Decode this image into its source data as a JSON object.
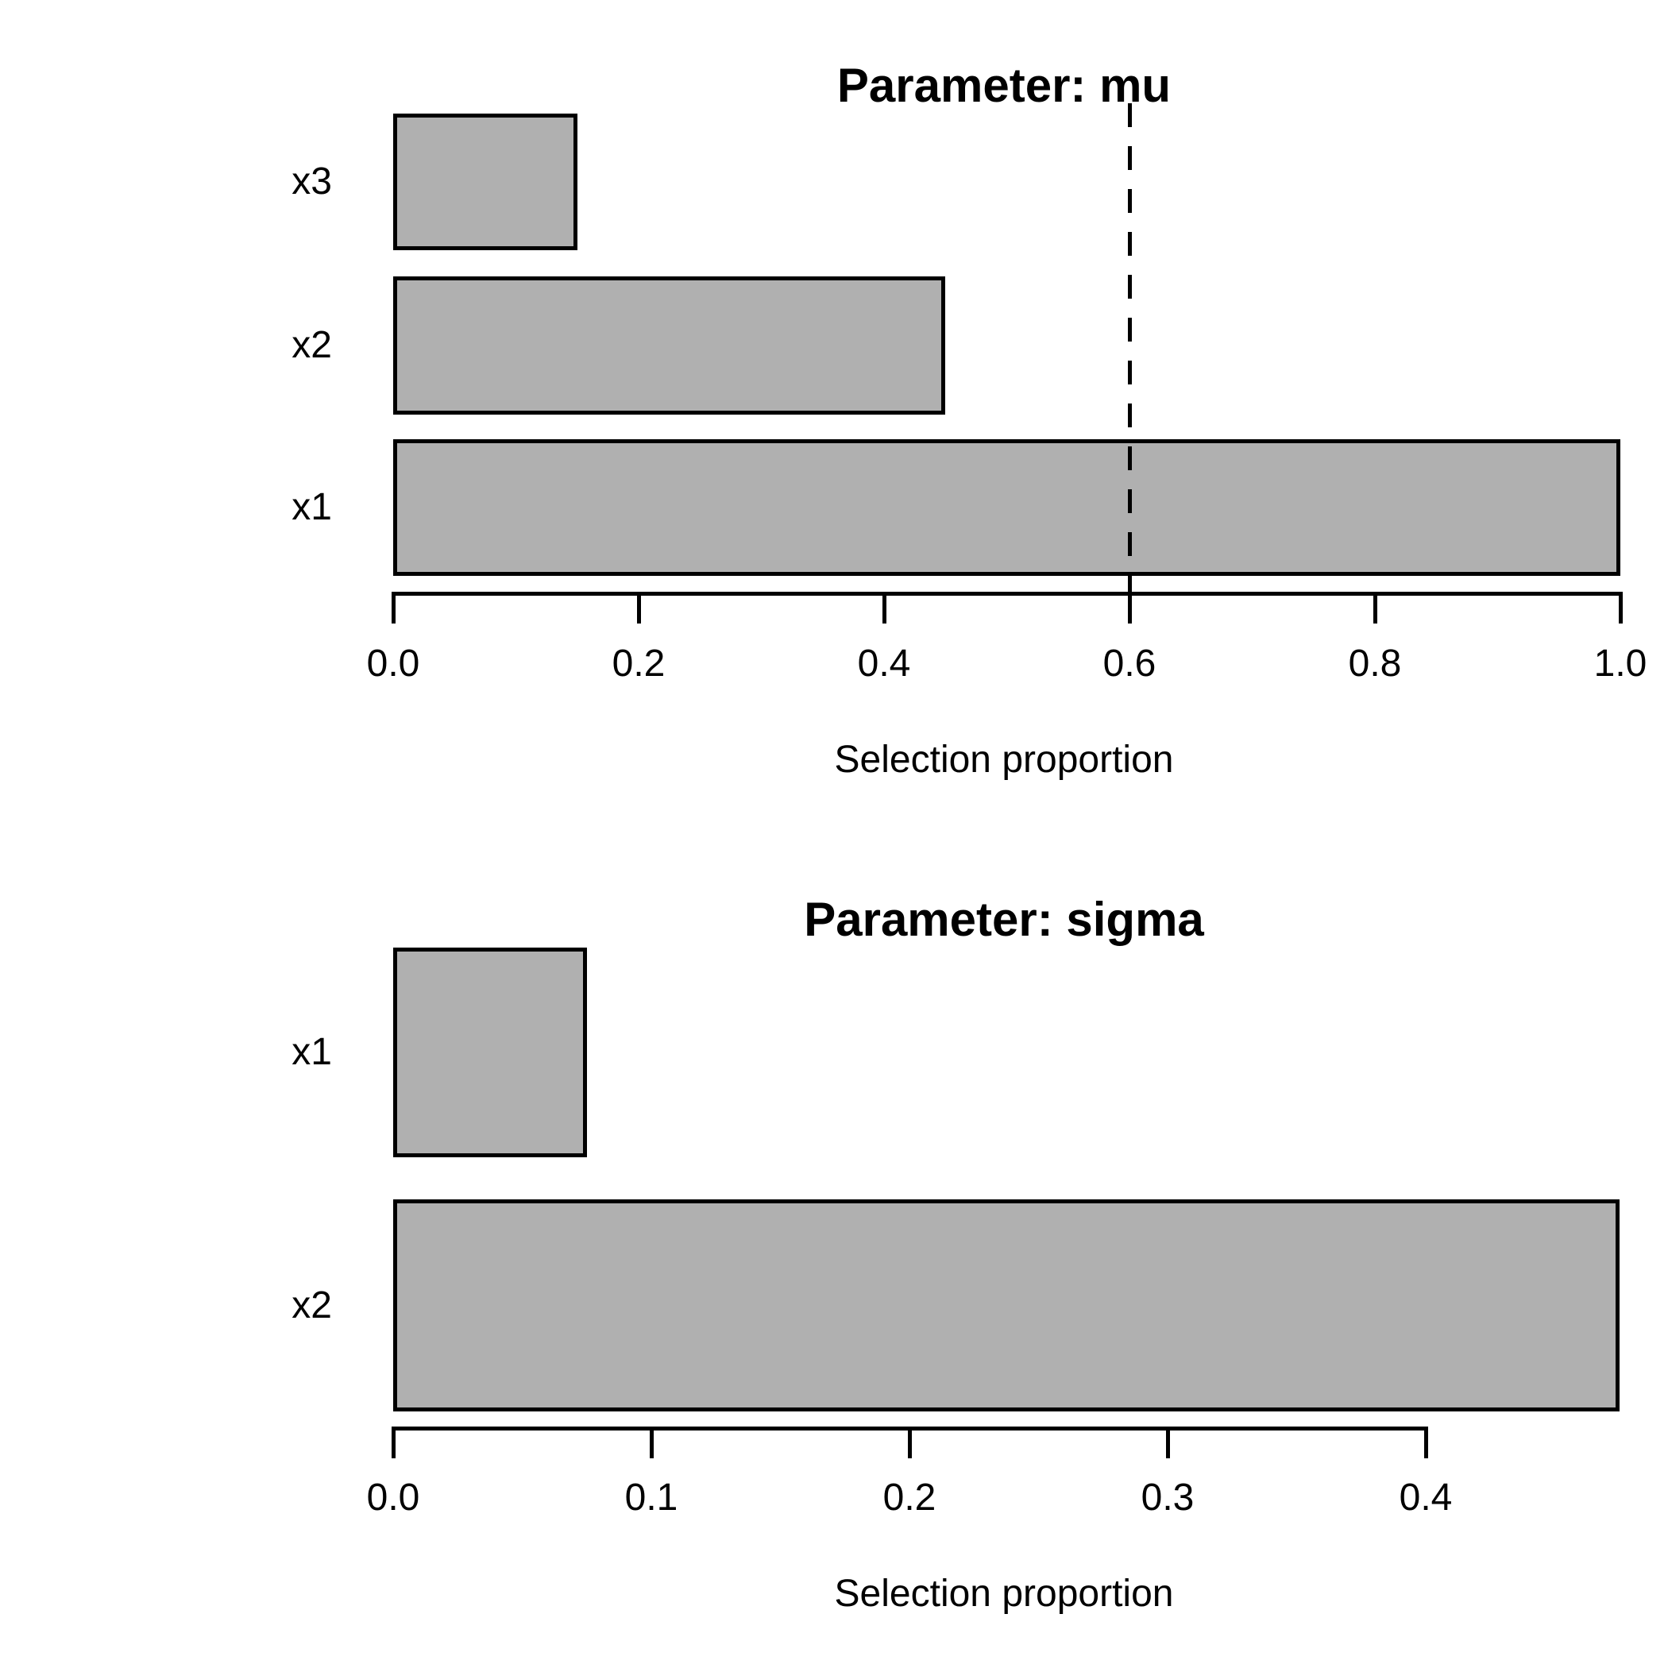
{
  "figure": {
    "background": "#ffffff",
    "text_color": "#000000"
  },
  "chart_data": [
    {
      "type": "bar",
      "orientation": "horizontal",
      "title": "Parameter: mu",
      "xlabel": "Selection proportion",
      "categories": [
        "x3",
        "x2",
        "x1"
      ],
      "values": [
        0.15,
        0.45,
        1.0
      ],
      "xticks": [
        0.0,
        0.2,
        0.4,
        0.6,
        0.8,
        1.0
      ],
      "xtick_labels": [
        "0.0",
        "0.2",
        "0.4",
        "0.6",
        "0.8",
        "1.0"
      ],
      "xlim": [
        0,
        1.0
      ],
      "threshold_line": 0.6,
      "threshold_style": "dashed",
      "threshold_color": "#000000",
      "bar_color": "#b0b0b0",
      "bar_border_color": "#000000",
      "grid": false,
      "legend": null
    },
    {
      "type": "bar",
      "orientation": "horizontal",
      "title": "Parameter: sigma",
      "xlabel": "Selection proportion",
      "categories": [
        "x1",
        "x2"
      ],
      "values": [
        0.075,
        0.475
      ],
      "xticks": [
        0.0,
        0.1,
        0.2,
        0.3,
        0.4
      ],
      "xtick_labels": [
        "0.0",
        "0.1",
        "0.2",
        "0.3",
        "0.4"
      ],
      "xlim": [
        0,
        0.475
      ],
      "threshold_line": null,
      "threshold_style": null,
      "threshold_color": null,
      "bar_color": "#b0b0b0",
      "bar_border_color": "#000000",
      "grid": false,
      "legend": null
    }
  ]
}
